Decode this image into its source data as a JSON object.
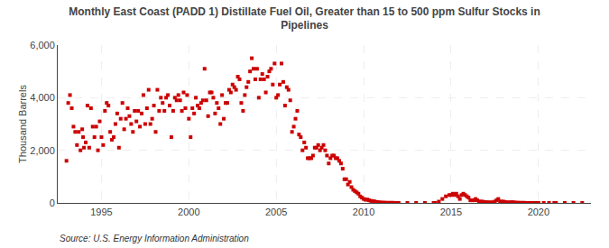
{
  "chart_data": {
    "type": "scatter",
    "title": "Monthly East Coast (PADD 1) Distillate Fuel Oil, Greater than 15 to 500 ppm Sulfur Stocks in\nPipelines",
    "ylabel": "Thousand Barrels",
    "annotations": [
      "Source: U.S. Energy Information Administration"
    ],
    "color": "#cc0000",
    "marker": "square",
    "grid": true,
    "xlim": [
      1992.5,
      2023.0
    ],
    "xticks": [
      1995,
      2000,
      2005,
      2010,
      2015,
      2020
    ],
    "ylim": [
      0,
      6000
    ],
    "yticks": [
      0,
      {
        "value": 2000,
        "label": "2,000"
      },
      {
        "value": 4000,
        "label": "4,000"
      },
      {
        "value": 6000,
        "label": "6,000"
      }
    ],
    "x": [
      1993.0,
      1993.1,
      1993.2,
      1993.3,
      1993.4,
      1993.5,
      1993.6,
      1993.7,
      1993.8,
      1993.9,
      1993.95,
      1994.0,
      1994.1,
      1994.2,
      1994.3,
      1994.4,
      1994.5,
      1994.6,
      1994.7,
      1994.8,
      1994.9,
      1995.0,
      1995.1,
      1995.2,
      1995.3,
      1995.4,
      1995.5,
      1995.6,
      1995.7,
      1995.8,
      1995.9,
      1996.0,
      1996.1,
      1996.2,
      1996.3,
      1996.4,
      1996.5,
      1996.6,
      1996.7,
      1996.8,
      1996.9,
      1997.0,
      1997.1,
      1997.2,
      1997.3,
      1997.4,
      1997.5,
      1997.6,
      1997.7,
      1997.8,
      1997.9,
      1998.0,
      1998.1,
      1998.2,
      1998.3,
      1998.4,
      1998.5,
      1998.6,
      1998.7,
      1998.8,
      1998.9,
      1999.0,
      1999.1,
      1999.2,
      1999.3,
      1999.4,
      1999.5,
      1999.6,
      1999.7,
      1999.8,
      1999.9,
      2000.0,
      2000.1,
      2000.2,
      2000.3,
      2000.4,
      2000.5,
      2000.6,
      2000.7,
      2000.8,
      2000.9,
      2001.0,
      2001.1,
      2001.2,
      2001.3,
      2001.4,
      2001.5,
      2001.6,
      2001.7,
      2001.8,
      2001.9,
      2002.0,
      2002.1,
      2002.2,
      2002.3,
      2002.4,
      2002.5,
      2002.6,
      2002.7,
      2002.8,
      2002.9,
      2003.0,
      2003.1,
      2003.2,
      2003.3,
      2003.4,
      2003.5,
      2003.6,
      2003.7,
      2003.8,
      2003.9,
      2004.0,
      2004.1,
      2004.2,
      2004.3,
      2004.4,
      2004.5,
      2004.6,
      2004.7,
      2004.8,
      2004.9,
      2005.0,
      2005.1,
      2005.2,
      2005.3,
      2005.4,
      2005.5,
      2005.6,
      2005.7,
      2005.8,
      2005.9,
      2006.0,
      2006.1,
      2006.2,
      2006.3,
      2006.4,
      2006.5,
      2006.6,
      2006.7,
      2006.8,
      2006.9,
      2007.0,
      2007.1,
      2007.2,
      2007.3,
      2007.4,
      2007.5,
      2007.6,
      2007.7,
      2007.8,
      2007.9,
      2008.0,
      2008.1,
      2008.2,
      2008.3,
      2008.4,
      2008.5,
      2008.6,
      2008.7,
      2008.8,
      2008.9,
      2009.0,
      2009.1,
      2009.2,
      2009.3,
      2009.4,
      2009.5,
      2009.6,
      2009.7,
      2009.8,
      2009.9,
      2010.0,
      2010.1,
      2010.2,
      2010.3,
      2010.4,
      2010.5,
      2010.6,
      2010.7,
      2010.8,
      2010.9,
      2011.0,
      2011.1,
      2011.2,
      2011.3,
      2011.4,
      2011.5,
      2011.6,
      2011.7,
      2011.8,
      2011.9,
      2012.0,
      2012.5,
      2013.0,
      2013.5,
      2014.0,
      2014.1,
      2014.3,
      2014.5,
      2014.7,
      2014.9,
      2015.0,
      2015.1,
      2015.2,
      2015.3,
      2015.4,
      2015.5,
      2015.6,
      2015.7,
      2015.8,
      2015.9,
      2016.0,
      2016.1,
      2016.2,
      2016.3,
      2016.4,
      2016.5,
      2016.6,
      2016.7,
      2016.8,
      2016.9,
      2017.0,
      2017.1,
      2017.2,
      2017.3,
      2017.4,
      2017.5,
      2017.6,
      2017.7,
      2017.8,
      2017.9,
      2018.0,
      2018.1,
      2018.2,
      2018.3,
      2018.4,
      2018.5,
      2018.6,
      2018.7,
      2018.8,
      2018.9,
      2019.0,
      2019.1,
      2019.2,
      2019.3,
      2019.4,
      2019.5,
      2019.6,
      2019.7,
      2019.8,
      2019.9,
      2020.0,
      2020.3,
      2020.6,
      2020.9,
      2021.0,
      2021.5,
      2022.0,
      2022.5
    ],
    "values": [
      1600,
      3800,
      4100,
      3600,
      2900,
      2700,
      2200,
      2700,
      2000,
      2800,
      2500,
      2100,
      2300,
      3700,
      2100,
      3600,
      2900,
      2500,
      2900,
      2000,
      3100,
      2500,
      2200,
      3500,
      3800,
      3700,
      2700,
      2400,
      2500,
      3000,
      3400,
      2100,
      3200,
      3800,
      2800,
      3200,
      3600,
      3300,
      3000,
      2700,
      3500,
      3100,
      3500,
      2900,
      3400,
      4100,
      3000,
      3600,
      4300,
      3000,
      3200,
      3700,
      2700,
      4300,
      3500,
      4000,
      3800,
      3500,
      4000,
      4100,
      3700,
      2500,
      3500,
      4000,
      3900,
      4100,
      3900,
      3500,
      4200,
      3600,
      4100,
      3200,
      2500,
      3600,
      3400,
      4000,
      3700,
      3600,
      3800,
      3900,
      5100,
      3900,
      3300,
      4200,
      4200,
      4000,
      3400,
      3800,
      3600,
      3000,
      4100,
      3200,
      3800,
      3800,
      4300,
      4200,
      4500,
      4400,
      4300,
      4800,
      4700,
      3800,
      3500,
      4100,
      4400,
      4600,
      5000,
      5500,
      5100,
      4700,
      5100,
      4000,
      4700,
      4900,
      4700,
      4200,
      4800,
      5000,
      5100,
      4500,
      5300,
      4000,
      4100,
      4500,
      5300,
      4600,
      3700,
      4400,
      4300,
      3900,
      2700,
      2900,
      3200,
      3500,
      2600,
      2500,
      2000,
      2300,
      2100,
      1700,
      1700,
      1700,
      1800,
      2100,
      2100,
      2200,
      2000,
      2100,
      2200,
      2000,
      1800,
      1500,
      1700,
      1800,
      1800,
      1700,
      1700,
      1600,
      1500,
      1300,
      900,
      900,
      700,
      800,
      600,
      500,
      450,
      400,
      350,
      250,
      200,
      150,
      120,
      130,
      100,
      80,
      70,
      60,
      40,
      30,
      20,
      15,
      10,
      10,
      5,
      5,
      5,
      5,
      5,
      0,
      0,
      0,
      0,
      0,
      0,
      0,
      0,
      50,
      150,
      250,
      300,
      300,
      350,
      300,
      350,
      250,
      150,
      300,
      350,
      300,
      250,
      200,
      100,
      100,
      100,
      150,
      100,
      50,
      50,
      50,
      30,
      30,
      20,
      20,
      20,
      20,
      50,
      100,
      150,
      50,
      50,
      50,
      30,
      20,
      20,
      20,
      30,
      20,
      10,
      10,
      5,
      5,
      5,
      5,
      0,
      0,
      0,
      0,
      0,
      0,
      0,
      0,
      0,
      0,
      0,
      0,
      0,
      0,
      0
    ]
  }
}
